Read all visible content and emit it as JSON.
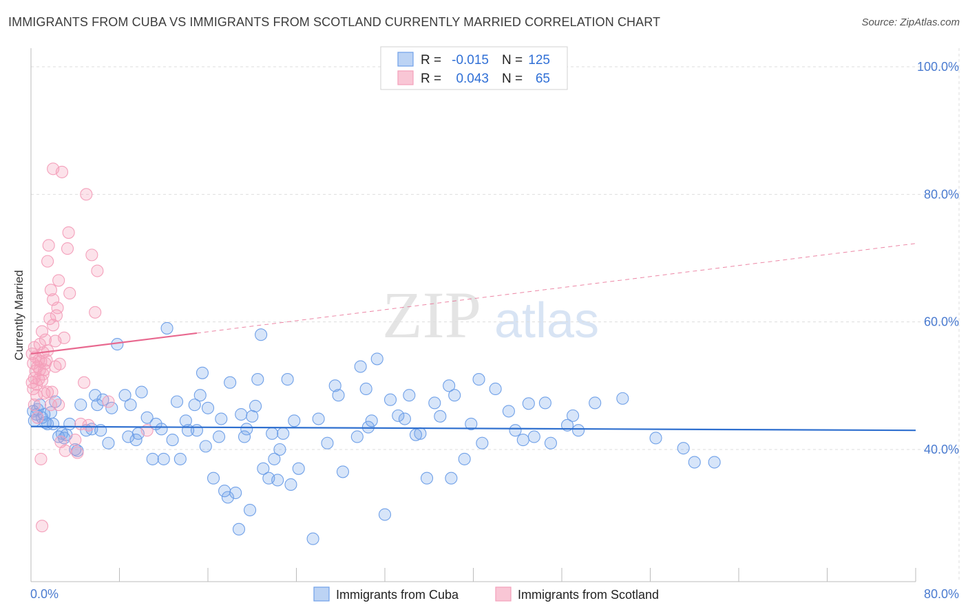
{
  "title": "IMMIGRANTS FROM CUBA VS IMMIGRANTS FROM SCOTLAND CURRENTLY MARRIED CORRELATION CHART",
  "source": "Source: ZipAtlas.com",
  "colors": {
    "cuba": "#6fa0e8",
    "cuba_line": "#2e6fcf",
    "scotland": "#f4a0bb",
    "scotland_line": "#e8688f",
    "tick": "#4a7bd0"
  },
  "legend": {
    "r_label": "R =",
    "n_label": "N =",
    "series": [
      {
        "r": "-0.015",
        "n": "125"
      },
      {
        "r": "0.043",
        "n": "65"
      }
    ]
  },
  "chart_data": {
    "type": "scatter",
    "title": "IMMIGRANTS FROM CUBA VS IMMIGRANTS FROM SCOTLAND CURRENTLY MARRIED CORRELATION CHART",
    "xlabel": "",
    "ylabel": "Currently Married",
    "xlim": [
      0,
      80
    ],
    "ylim": [
      20,
      104
    ],
    "x_tick_labels": [
      "0.0%",
      "80.0%"
    ],
    "y_ticks": [
      40,
      60,
      80,
      100
    ],
    "y_tick_labels": [
      "40.0%",
      "60.0%",
      "80.0%",
      "100.0%"
    ],
    "watermark": {
      "zip": "ZIP",
      "atlas": "atlas"
    },
    "series": [
      {
        "name": "Immigrants from Cuba",
        "r": -0.015,
        "n": 125,
        "trend": {
          "x0": 0,
          "y0": 43.6,
          "x1": 80,
          "y1": 43.0,
          "dashed_from": null
        },
        "points": [
          [
            0.2,
            46.0
          ],
          [
            0.3,
            44.5
          ],
          [
            0.5,
            45.5
          ],
          [
            0.6,
            46.3
          ],
          [
            0.8,
            47.0
          ],
          [
            1.0,
            45.0
          ],
          [
            1.2,
            45.5
          ],
          [
            1.5,
            44.0
          ],
          [
            1.8,
            45.8
          ],
          [
            2.0,
            44.0
          ],
          [
            2.2,
            47.5
          ],
          [
            2.5,
            42.0
          ],
          [
            2.8,
            42.5
          ],
          [
            3.2,
            42.3
          ],
          [
            3.5,
            44.0
          ],
          [
            4.0,
            40.0
          ],
          [
            4.2,
            39.8
          ],
          [
            4.5,
            47.0
          ],
          [
            5.0,
            43.0
          ],
          [
            5.5,
            43.2
          ],
          [
            5.8,
            48.5
          ],
          [
            6.0,
            47.0
          ],
          [
            6.5,
            47.8
          ],
          [
            7.0,
            41.0
          ],
          [
            7.3,
            46.5
          ],
          [
            7.8,
            56.5
          ],
          [
            8.5,
            48.5
          ],
          [
            8.8,
            42.0
          ],
          [
            9.0,
            47.0
          ],
          [
            9.5,
            41.5
          ],
          [
            9.7,
            42.5
          ],
          [
            10.0,
            49.0
          ],
          [
            10.5,
            45.0
          ],
          [
            11.0,
            38.5
          ],
          [
            11.3,
            44.0
          ],
          [
            11.8,
            43.2
          ],
          [
            12.0,
            38.5
          ],
          [
            12.3,
            59.0
          ],
          [
            12.8,
            41.5
          ],
          [
            13.2,
            47.5
          ],
          [
            13.5,
            38.5
          ],
          [
            14.0,
            44.5
          ],
          [
            14.2,
            43.0
          ],
          [
            14.8,
            47.0
          ],
          [
            15.3,
            48.5
          ],
          [
            15.5,
            52.0
          ],
          [
            15.8,
            40.5
          ],
          [
            16.0,
            46.5
          ],
          [
            16.5,
            35.5
          ],
          [
            17.0,
            42.0
          ],
          [
            17.2,
            44.8
          ],
          [
            17.5,
            33.5
          ],
          [
            17.8,
            32.5
          ],
          [
            18.0,
            50.5
          ],
          [
            18.5,
            33.2
          ],
          [
            18.8,
            27.5
          ],
          [
            19.0,
            45.5
          ],
          [
            19.3,
            42.0
          ],
          [
            19.5,
            43.2
          ],
          [
            19.8,
            30.5
          ],
          [
            20.0,
            45.2
          ],
          [
            20.3,
            46.8
          ],
          [
            20.5,
            51.0
          ],
          [
            20.8,
            58.0
          ],
          [
            21.0,
            37.0
          ],
          [
            21.5,
            35.5
          ],
          [
            21.8,
            42.5
          ],
          [
            22.0,
            38.5
          ],
          [
            22.3,
            35.2
          ],
          [
            22.5,
            40.0
          ],
          [
            22.8,
            42.5
          ],
          [
            23.2,
            51.0
          ],
          [
            23.5,
            34.5
          ],
          [
            23.8,
            44.5
          ],
          [
            24.2,
            37.0
          ],
          [
            25.5,
            26.0
          ],
          [
            26.0,
            44.8
          ],
          [
            26.8,
            41.0
          ],
          [
            27.5,
            50.0
          ],
          [
            27.8,
            48.5
          ],
          [
            28.2,
            36.5
          ],
          [
            29.5,
            42.0
          ],
          [
            29.8,
            53.0
          ],
          [
            30.3,
            49.5
          ],
          [
            30.5,
            43.5
          ],
          [
            30.8,
            44.5
          ],
          [
            31.3,
            54.2
          ],
          [
            32.0,
            29.8
          ],
          [
            32.5,
            47.8
          ],
          [
            33.2,
            45.3
          ],
          [
            33.8,
            44.8
          ],
          [
            34.2,
            48.5
          ],
          [
            34.8,
            42.3
          ],
          [
            35.2,
            42.5
          ],
          [
            35.8,
            35.5
          ],
          [
            36.5,
            47.3
          ],
          [
            37.0,
            45.2
          ],
          [
            37.8,
            50.0
          ],
          [
            38.0,
            35.5
          ],
          [
            38.3,
            48.5
          ],
          [
            39.2,
            38.5
          ],
          [
            39.8,
            44.0
          ],
          [
            40.5,
            51.0
          ],
          [
            40.8,
            41.0
          ],
          [
            42.0,
            49.5
          ],
          [
            43.2,
            46.0
          ],
          [
            43.8,
            43.0
          ],
          [
            44.5,
            41.5
          ],
          [
            45.0,
            47.2
          ],
          [
            45.5,
            42.0
          ],
          [
            46.5,
            47.3
          ],
          [
            47.0,
            41.0
          ],
          [
            48.5,
            43.8
          ],
          [
            49.0,
            45.3
          ],
          [
            49.5,
            43.0
          ],
          [
            51.0,
            47.3
          ],
          [
            53.5,
            48.0
          ],
          [
            56.5,
            41.8
          ],
          [
            59.0,
            40.2
          ],
          [
            60.0,
            38.0
          ],
          [
            61.8,
            38.0
          ],
          [
            1.3,
            44.2
          ],
          [
            3.0,
            41.8
          ],
          [
            6.3,
            43.0
          ],
          [
            15.0,
            43.0
          ]
        ]
      },
      {
        "name": "Immigrants from Scotland",
        "r": 0.043,
        "n": 65,
        "trend": {
          "x0": 0,
          "y0": 55.0,
          "x1": 80,
          "y1": 72.3,
          "solid_until": 15
        },
        "points": [
          [
            0.1,
            55.0
          ],
          [
            0.1,
            50.5
          ],
          [
            0.2,
            53.5
          ],
          [
            0.2,
            49.5
          ],
          [
            0.3,
            51.2
          ],
          [
            0.3,
            47.0
          ],
          [
            0.4,
            52.3
          ],
          [
            0.4,
            54.5
          ],
          [
            0.5,
            50.2
          ],
          [
            0.5,
            48.5
          ],
          [
            0.6,
            53.0
          ],
          [
            0.7,
            51.0
          ],
          [
            0.8,
            52.5
          ],
          [
            0.8,
            56.5
          ],
          [
            0.9,
            53.8
          ],
          [
            1.0,
            58.5
          ],
          [
            1.0,
            50.8
          ],
          [
            1.1,
            55.2
          ],
          [
            1.2,
            52.5
          ],
          [
            1.3,
            53.5
          ],
          [
            1.3,
            57.2
          ],
          [
            1.4,
            54.0
          ],
          [
            1.5,
            69.5
          ],
          [
            1.5,
            49.0
          ],
          [
            1.6,
            72.0
          ],
          [
            1.7,
            60.5
          ],
          [
            1.8,
            65.0
          ],
          [
            2.0,
            63.5
          ],
          [
            2.0,
            84.0
          ],
          [
            2.0,
            59.5
          ],
          [
            2.2,
            57.0
          ],
          [
            2.3,
            61.0
          ],
          [
            2.4,
            62.2
          ],
          [
            2.5,
            66.5
          ],
          [
            2.5,
            47.0
          ],
          [
            2.8,
            83.5
          ],
          [
            3.0,
            57.5
          ],
          [
            3.3,
            71.5
          ],
          [
            3.4,
            74.0
          ],
          [
            3.5,
            64.5
          ],
          [
            4.0,
            41.5
          ],
          [
            4.2,
            39.5
          ],
          [
            4.5,
            44.0
          ],
          [
            5.0,
            80.0
          ],
          [
            5.5,
            70.5
          ],
          [
            5.8,
            61.5
          ],
          [
            6.0,
            68.0
          ],
          [
            7.0,
            47.5
          ],
          [
            10.5,
            43.0
          ],
          [
            1.0,
            28.0
          ],
          [
            0.9,
            38.5
          ],
          [
            1.8,
            47.0
          ],
          [
            2.7,
            41.2
          ],
          [
            4.8,
            50.5
          ],
          [
            1.5,
            55.5
          ],
          [
            3.1,
            39.8
          ],
          [
            0.6,
            45.0
          ],
          [
            1.2,
            48.8
          ],
          [
            2.2,
            53.0
          ],
          [
            5.2,
            43.8
          ],
          [
            1.9,
            49.0
          ],
          [
            0.3,
            56.0
          ],
          [
            2.6,
            53.4
          ],
          [
            1.1,
            51.8
          ],
          [
            0.7,
            54.0
          ]
        ]
      }
    ],
    "legend_position": "top-center"
  }
}
